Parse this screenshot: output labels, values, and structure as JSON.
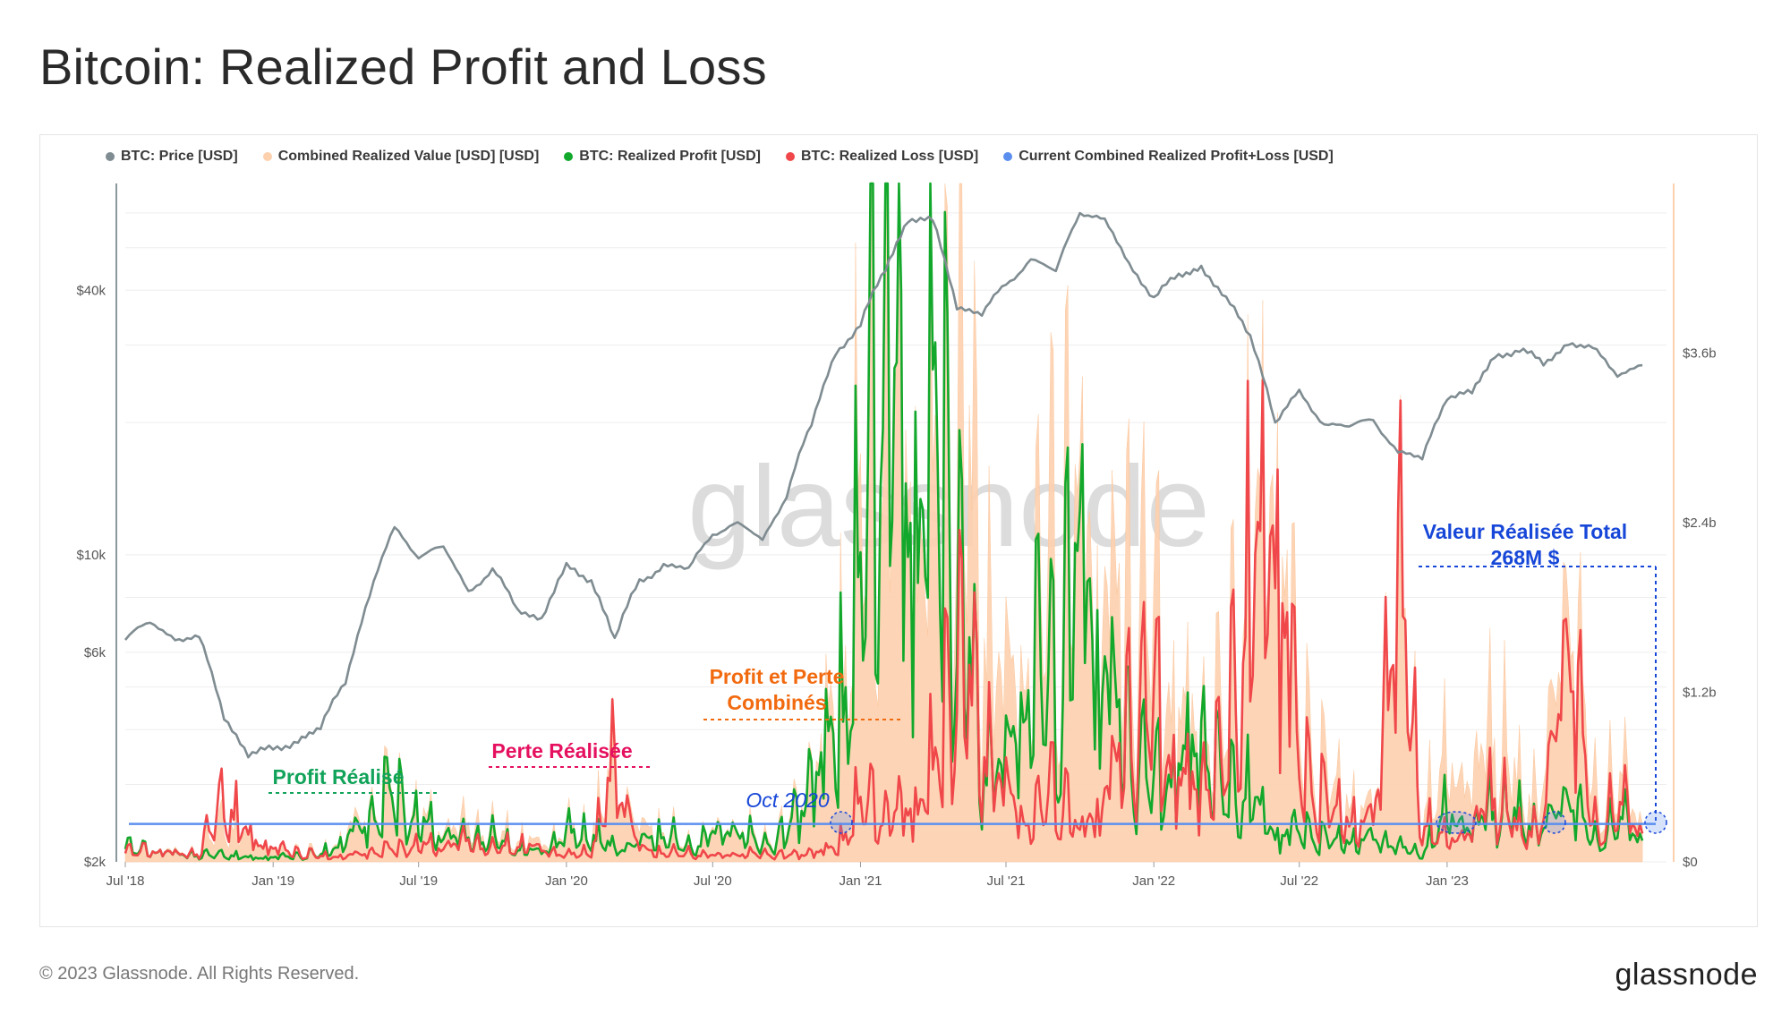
{
  "page": {
    "title": "Bitcoin: Realized Profit and Loss",
    "copyright": "© 2023 Glassnode. All Rights Reserved.",
    "logo": "glassnode",
    "watermark": "glassnode"
  },
  "legend": [
    {
      "label": "BTC: Price [USD]",
      "color": "#7f8c91"
    },
    {
      "label": "Combined Realized Value [USD] [USD]",
      "color": "#fdd0ae"
    },
    {
      "label": "BTC: Realized Profit [USD]",
      "color": "#12a82b"
    },
    {
      "label": "BTC: Realized Loss [USD]",
      "color": "#f0474a"
    },
    {
      "label": "Current Combined Realized Profit+Loss [USD]",
      "color": "#5b8fee"
    }
  ],
  "annotations": {
    "profit": {
      "text": "Profit Réalisé",
      "color": "#11a35a"
    },
    "loss": {
      "text": "Perte Réalisée",
      "color": "#e5105f"
    },
    "combined_line1": {
      "text": "Profit et Perte",
      "color": "#f26a0f"
    },
    "combined_line2": {
      "text": "Combinés",
      "color": "#f26a0f"
    },
    "oct": {
      "text": "Oct 2020",
      "color": "#1747d8"
    },
    "total_line1": {
      "text": "Valeur Réalisée Total",
      "color": "#1747d8"
    },
    "total_line2": {
      "text": "268M $",
      "color": "#1747d8"
    }
  },
  "chart_data": {
    "type": "line",
    "x_ticks": [
      "Jul '18",
      "Jan '19",
      "Jul '19",
      "Jan '20",
      "Jul '20",
      "Jan '21",
      "Jul '21",
      "Jan '22",
      "Jul '22",
      "Jan '23"
    ],
    "x_range": [
      "2018-07",
      "2023-10"
    ],
    "y_left": {
      "scale": "log",
      "ticks": [
        "$2k",
        "$6k",
        "$10k",
        "$40k"
      ],
      "range": [
        2000,
        70000
      ]
    },
    "y_right": {
      "scale": "linear",
      "ticks": [
        "$0",
        "$1.2b",
        "$2.4b",
        "$3.6b"
      ],
      "range": [
        0,
        4800000000
      ]
    },
    "current_combined_realized_value_usd": 268000000,
    "series": [
      {
        "name": "BTC: Price [USD]",
        "axis": "left",
        "points": [
          [
            "2018-07",
            6400
          ],
          [
            "2018-08",
            7000
          ],
          [
            "2018-09",
            6500
          ],
          [
            "2018-10",
            6400
          ],
          [
            "2018-11",
            4300
          ],
          [
            "2018-12",
            3500
          ],
          [
            "2019-01",
            3600
          ],
          [
            "2019-02",
            3800
          ],
          [
            "2019-03",
            4000
          ],
          [
            "2019-04",
            5200
          ],
          [
            "2019-05",
            8000
          ],
          [
            "2019-06",
            11500
          ],
          [
            "2019-07",
            10000
          ],
          [
            "2019-08",
            10300
          ],
          [
            "2019-09",
            8300
          ],
          [
            "2019-10",
            9200
          ],
          [
            "2019-11",
            7500
          ],
          [
            "2019-12",
            7200
          ],
          [
            "2020-01",
            9300
          ],
          [
            "2020-02",
            8800
          ],
          [
            "2020-03",
            6400
          ],
          [
            "2020-04",
            8700
          ],
          [
            "2020-05",
            9500
          ],
          [
            "2020-06",
            9200
          ],
          [
            "2020-07",
            11300
          ],
          [
            "2020-08",
            11700
          ],
          [
            "2020-09",
            10800
          ],
          [
            "2020-10",
            13700
          ],
          [
            "2020-11",
            19600
          ],
          [
            "2020-12",
            29000
          ],
          [
            "2021-01",
            33000
          ],
          [
            "2021-02",
            45000
          ],
          [
            "2021-03",
            58000
          ],
          [
            "2021-04",
            57000
          ],
          [
            "2021-05",
            37000
          ],
          [
            "2021-06",
            35000
          ],
          [
            "2021-07",
            41500
          ],
          [
            "2021-08",
            47000
          ],
          [
            "2021-09",
            43800
          ],
          [
            "2021-10",
            61000
          ],
          [
            "2021-11",
            57000
          ],
          [
            "2021-12",
            46000
          ],
          [
            "2022-01",
            38500
          ],
          [
            "2022-02",
            43000
          ],
          [
            "2022-03",
            45500
          ],
          [
            "2022-04",
            37700
          ],
          [
            "2022-05",
            31800
          ],
          [
            "2022-06",
            19900
          ],
          [
            "2022-07",
            23300
          ],
          [
            "2022-08",
            20000
          ],
          [
            "2022-09",
            19400
          ],
          [
            "2022-10",
            20500
          ],
          [
            "2022-11",
            17000
          ],
          [
            "2022-12",
            16500
          ],
          [
            "2023-01",
            23100
          ],
          [
            "2023-02",
            23100
          ],
          [
            "2023-03",
            28500
          ],
          [
            "2023-04",
            29200
          ],
          [
            "2023-05",
            27200
          ],
          [
            "2023-06",
            30500
          ],
          [
            "2023-07",
            29200
          ],
          [
            "2023-08",
            26000
          ],
          [
            "2023-09",
            27000
          ]
        ]
      },
      {
        "name": "Combined Realized Value [USD] [USD]",
        "axis": "right",
        "points": [
          [
            "2018-07",
            90000000
          ],
          [
            "2018-08",
            85000000
          ],
          [
            "2018-09",
            75000000
          ],
          [
            "2018-10",
            60000000
          ],
          [
            "2018-11",
            280000000
          ],
          [
            "2018-12",
            170000000
          ],
          [
            "2019-01",
            80000000
          ],
          [
            "2019-02",
            75000000
          ],
          [
            "2019-03",
            60000000
          ],
          [
            "2019-04",
            200000000
          ],
          [
            "2019-05",
            320000000
          ],
          [
            "2019-06",
            460000000
          ],
          [
            "2019-07",
            330000000
          ],
          [
            "2019-08",
            220000000
          ],
          [
            "2019-09",
            240000000
          ],
          [
            "2019-10",
            220000000
          ],
          [
            "2019-11",
            190000000
          ],
          [
            "2019-12",
            110000000
          ],
          [
            "2020-01",
            210000000
          ],
          [
            "2020-02",
            240000000
          ],
          [
            "2020-03",
            610000000
          ],
          [
            "2020-04",
            200000000
          ],
          [
            "2020-05",
            260000000
          ],
          [
            "2020-06",
            120000000
          ],
          [
            "2020-07",
            200000000
          ],
          [
            "2020-08",
            240000000
          ],
          [
            "2020-09",
            160000000
          ],
          [
            "2020-10",
            220000000
          ],
          [
            "2020-11",
            560000000
          ],
          [
            "2020-12",
            1150000000
          ],
          [
            "2021-01",
            2600000000
          ],
          [
            "2021-02",
            3250000000
          ],
          [
            "2021-03",
            2700000000
          ],
          [
            "2021-04",
            2500000000
          ],
          [
            "2021-05",
            3100000000
          ],
          [
            "2021-06",
            1700000000
          ],
          [
            "2021-07",
            1250000000
          ],
          [
            "2021-08",
            1500000000
          ],
          [
            "2021-09",
            2100000000
          ],
          [
            "2021-10",
            2500000000
          ],
          [
            "2021-11",
            2000000000
          ],
          [
            "2021-12",
            1700000000
          ],
          [
            "2022-01",
            1550000000
          ],
          [
            "2022-02",
            1100000000
          ],
          [
            "2022-03",
            900000000
          ],
          [
            "2022-04",
            1000000000
          ],
          [
            "2022-05",
            2250000000
          ],
          [
            "2022-06",
            2900000000
          ],
          [
            "2022-07",
            900000000
          ],
          [
            "2022-08",
            600000000
          ],
          [
            "2022-09",
            450000000
          ],
          [
            "2022-10",
            300000000
          ],
          [
            "2022-11",
            1900000000
          ],
          [
            "2022-12",
            400000000
          ],
          [
            "2023-01",
            700000000
          ],
          [
            "2023-02",
            500000000
          ],
          [
            "2023-03",
            1000000000
          ],
          [
            "2023-04",
            500000000
          ],
          [
            "2023-05",
            450000000
          ],
          [
            "2023-06",
            1900000000
          ],
          [
            "2023-07",
            500000000
          ],
          [
            "2023-08",
            600000000
          ],
          [
            "2023-09",
            268000000
          ]
        ]
      },
      {
        "name": "BTC: Realized Profit [USD]",
        "axis": "right",
        "points": [
          [
            "2018-07",
            90000000
          ],
          [
            "2018-08",
            80000000
          ],
          [
            "2018-09",
            60000000
          ],
          [
            "2018-10",
            40000000
          ],
          [
            "2018-11",
            50000000
          ],
          [
            "2018-12",
            30000000
          ],
          [
            "2019-01",
            30000000
          ],
          [
            "2019-02",
            40000000
          ],
          [
            "2019-03",
            50000000
          ],
          [
            "2019-04",
            160000000
          ],
          [
            "2019-05",
            270000000
          ],
          [
            "2019-06",
            440000000
          ],
          [
            "2019-07",
            280000000
          ],
          [
            "2019-08",
            180000000
          ],
          [
            "2019-09",
            150000000
          ],
          [
            "2019-10",
            170000000
          ],
          [
            "2019-11",
            100000000
          ],
          [
            "2019-12",
            60000000
          ],
          [
            "2020-01",
            180000000
          ],
          [
            "2020-02",
            200000000
          ],
          [
            "2020-03",
            80000000
          ],
          [
            "2020-04",
            120000000
          ],
          [
            "2020-05",
            210000000
          ],
          [
            "2020-06",
            100000000
          ],
          [
            "2020-07",
            180000000
          ],
          [
            "2020-08",
            220000000
          ],
          [
            "2020-09",
            120000000
          ],
          [
            "2020-10",
            180000000
          ],
          [
            "2020-11",
            520000000
          ],
          [
            "2020-12",
            950000000
          ],
          [
            "2021-01",
            2000000000
          ],
          [
            "2021-02",
            3800000000
          ],
          [
            "2021-03",
            2300000000
          ],
          [
            "2021-04",
            3200000000
          ],
          [
            "2021-05",
            1800000000
          ],
          [
            "2021-06",
            650000000
          ],
          [
            "2021-07",
            700000000
          ],
          [
            "2021-08",
            1300000000
          ],
          [
            "2021-09",
            1100000000
          ],
          [
            "2021-10",
            2200000000
          ],
          [
            "2021-11",
            1400000000
          ],
          [
            "2021-12",
            750000000
          ],
          [
            "2022-01",
            500000000
          ],
          [
            "2022-02",
            700000000
          ],
          [
            "2022-03",
            800000000
          ],
          [
            "2022-04",
            450000000
          ],
          [
            "2022-05",
            500000000
          ],
          [
            "2022-06",
            200000000
          ],
          [
            "2022-07",
            200000000
          ],
          [
            "2022-08",
            150000000
          ],
          [
            "2022-09",
            150000000
          ],
          [
            "2022-10",
            150000000
          ],
          [
            "2022-11",
            100000000
          ],
          [
            "2022-12",
            60000000
          ],
          [
            "2023-01",
            350000000
          ],
          [
            "2023-02",
            200000000
          ],
          [
            "2023-03",
            400000000
          ],
          [
            "2023-04",
            300000000
          ],
          [
            "2023-05",
            200000000
          ],
          [
            "2023-06",
            450000000
          ],
          [
            "2023-07",
            150000000
          ],
          [
            "2023-08",
            300000000
          ],
          [
            "2023-09",
            150000000
          ]
        ]
      },
      {
        "name": "BTC: Realized Loss [USD]",
        "axis": "right",
        "points": [
          [
            "2018-07",
            60000000
          ],
          [
            "2018-08",
            80000000
          ],
          [
            "2018-09",
            60000000
          ],
          [
            "2018-10",
            50000000
          ],
          [
            "2018-11",
            420000000
          ],
          [
            "2018-12",
            180000000
          ],
          [
            "2019-01",
            90000000
          ],
          [
            "2019-02",
            60000000
          ],
          [
            "2019-03",
            40000000
          ],
          [
            "2019-04",
            40000000
          ],
          [
            "2019-05",
            60000000
          ],
          [
            "2019-06",
            80000000
          ],
          [
            "2019-07",
            120000000
          ],
          [
            "2019-08",
            100000000
          ],
          [
            "2019-09",
            140000000
          ],
          [
            "2019-10",
            90000000
          ],
          [
            "2019-11",
            130000000
          ],
          [
            "2019-12",
            80000000
          ],
          [
            "2020-01",
            40000000
          ],
          [
            "2020-02",
            80000000
          ],
          [
            "2020-03",
            630000000
          ],
          [
            "2020-04",
            80000000
          ],
          [
            "2020-05",
            70000000
          ],
          [
            "2020-06",
            60000000
          ],
          [
            "2020-07",
            40000000
          ],
          [
            "2020-08",
            50000000
          ],
          [
            "2020-09",
            60000000
          ],
          [
            "2020-10",
            40000000
          ],
          [
            "2020-11",
            60000000
          ],
          [
            "2020-12",
            100000000
          ],
          [
            "2021-01",
            420000000
          ],
          [
            "2021-02",
            300000000
          ],
          [
            "2021-03",
            350000000
          ],
          [
            "2021-04",
            600000000
          ],
          [
            "2021-05",
            1350000000
          ],
          [
            "2021-06",
            800000000
          ],
          [
            "2021-07",
            500000000
          ],
          [
            "2021-08",
            250000000
          ],
          [
            "2021-09",
            500000000
          ],
          [
            "2021-10",
            200000000
          ],
          [
            "2021-11",
            500000000
          ],
          [
            "2021-12",
            900000000
          ],
          [
            "2022-01",
            1000000000
          ],
          [
            "2022-02",
            600000000
          ],
          [
            "2022-03",
            500000000
          ],
          [
            "2022-04",
            700000000
          ],
          [
            "2022-05",
            2000000000
          ],
          [
            "2022-06",
            2500000000
          ],
          [
            "2022-07",
            600000000
          ],
          [
            "2022-08",
            400000000
          ],
          [
            "2022-09",
            300000000
          ],
          [
            "2022-10",
            250000000
          ],
          [
            "2022-11",
            1900000000
          ],
          [
            "2022-12",
            300000000
          ],
          [
            "2023-01",
            150000000
          ],
          [
            "2023-02",
            200000000
          ],
          [
            "2023-03",
            500000000
          ],
          [
            "2023-04",
            200000000
          ],
          [
            "2023-05",
            250000000
          ],
          [
            "2023-06",
            1550000000
          ],
          [
            "2023-07",
            250000000
          ],
          [
            "2023-08",
            400000000
          ],
          [
            "2023-09",
            200000000
          ]
        ]
      }
    ]
  }
}
